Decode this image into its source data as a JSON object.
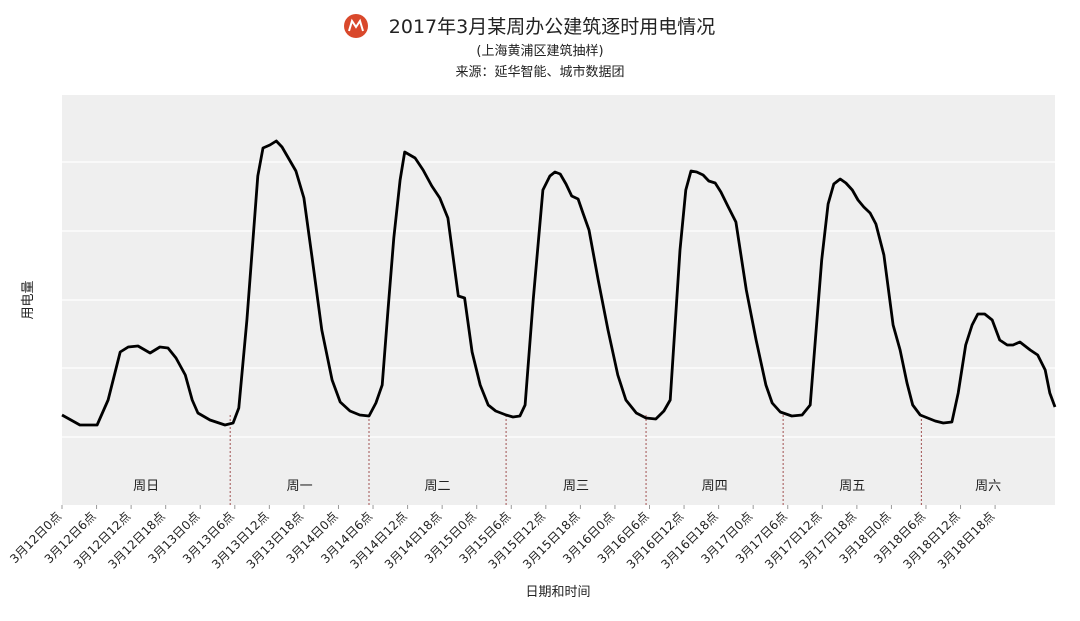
{
  "chart_data": {
    "type": "line",
    "title": "2017年3月某周办公建筑逐时用电情况",
    "subtitle": "(上海黄浦区建筑抽样)",
    "source": "来源：延华智能、城市数据团",
    "x_label": "日期和时间",
    "y_label": "用电量",
    "color": "#000000",
    "grid": true,
    "x": [
      0,
      3.1,
      6.1,
      8.0,
      10.1,
      11.5,
      13.2,
      15.3,
      17.0,
      18.4,
      19.8,
      21.4,
      22.6,
      23.6,
      25.7,
      28.3,
      29.7,
      30.7,
      32.1,
      34.0,
      34.9,
      36.1,
      37.2,
      38.2,
      39.2,
      40.6,
      42.0,
      43.4,
      45.1,
      46.9,
      48.3,
      50.0,
      51.7,
      53.3,
      54.5,
      55.6,
      56.6,
      57.6,
      58.7,
      59.5,
      61.3,
      62.7,
      64.2,
      65.6,
      67.0,
      68.8,
      69.9,
      71.2,
      72.6,
      74.0,
      75.3,
      77.1,
      78.3,
      79.5,
      80.4,
      81.8,
      83.5,
      84.7,
      85.6,
      86.5,
      87.5,
      88.5,
      89.6,
      90.5,
      91.5,
      93.1,
      94.8,
      96.5,
      97.9,
      99.7,
      101.4,
      103.1,
      104.5,
      105.6,
      107.3,
      108.3,
      109.2,
      110.2,
      111.3,
      112.3,
      113.4,
      114.4,
      115.6,
      117.0,
      118.8,
      120.5,
      122.2,
      123.3,
      124.7,
      126.7,
      128.5,
      129.9,
      131.9,
      133.0,
      134.0,
      135.1,
      136.1,
      137.2,
      138.2,
      139.2,
      140.3,
      141.3,
      142.7,
      144.3,
      145.5,
      146.7,
      147.7,
      149.0,
      151.6,
      153.0,
      154.5,
      155.6,
      156.9,
      158.0,
      159.0,
      160.2,
      161.5,
      162.8,
      164.1,
      165.1,
      166.3,
      168.1,
      169.4,
      170.7,
      171.5,
      172.4
    ],
    "values": [
      90,
      80,
      80,
      105,
      153,
      158,
      159,
      152,
      158,
      157,
      147,
      130,
      105,
      92,
      85,
      80,
      82,
      97,
      185,
      329,
      357,
      360,
      364,
      358,
      348,
      334,
      307,
      248,
      175,
      125,
      103,
      94,
      90,
      89,
      102,
      120,
      195,
      267,
      325,
      353,
      347,
      335,
      319,
      307,
      287,
      209,
      207,
      153,
      120,
      100,
      94,
      90,
      88,
      89,
      100,
      205,
      315,
      329,
      333,
      331,
      321,
      309,
      306,
      291,
      275,
      225,
      175,
      130,
      105,
      92,
      87,
      86,
      94,
      105,
      255,
      315,
      334,
      333,
      330,
      324,
      322,
      313,
      299,
      283,
      215,
      165,
      120,
      102,
      93,
      89,
      90,
      100,
      245,
      301,
      321,
      326,
      322,
      315,
      305,
      298,
      292,
      281,
      250,
      180,
      155,
      122,
      100,
      90,
      84,
      82,
      83,
      112,
      160,
      180,
      191,
      191,
      185,
      165,
      160,
      160,
      163,
      155,
      150,
      135,
      112,
      98
    ],
    "xlim": [
      0,
      172.4
    ],
    "ylim": [
      0,
      410
    ],
    "yticks": [
      68,
      137,
      205,
      274,
      343
    ],
    "xticks": [
      {
        "value": 0,
        "label": "3月12日0点"
      },
      {
        "value": 6,
        "label": "3月12日6点"
      },
      {
        "value": 12,
        "label": "3月12日12点"
      },
      {
        "value": 18,
        "label": "3月12日18点"
      },
      {
        "value": 24,
        "label": "3月13日0点"
      },
      {
        "value": 30,
        "label": "3月13日6点"
      },
      {
        "value": 36,
        "label": "3月13日12点"
      },
      {
        "value": 42,
        "label": "3月13日18点"
      },
      {
        "value": 48,
        "label": "3月14日0点"
      },
      {
        "value": 54,
        "label": "3月14日6点"
      },
      {
        "value": 60,
        "label": "3月14日12点"
      },
      {
        "value": 66,
        "label": "3月14日18点"
      },
      {
        "value": 72,
        "label": "3月15日0点"
      },
      {
        "value": 78,
        "label": "3月15日6点"
      },
      {
        "value": 84,
        "label": "3月15日12点"
      },
      {
        "value": 90,
        "label": "3月15日18点"
      },
      {
        "value": 96,
        "label": "3月16日0点"
      },
      {
        "value": 102,
        "label": "3月16日6点"
      },
      {
        "value": 108,
        "label": "3月16日12点"
      },
      {
        "value": 114,
        "label": "3月16日18点"
      },
      {
        "value": 120,
        "label": "3月17日0点"
      },
      {
        "value": 126,
        "label": "3月17日6点"
      },
      {
        "value": 132,
        "label": "3月17日12点"
      },
      {
        "value": 138,
        "label": "3月17日18点"
      },
      {
        "value": 144,
        "label": "3月18日0点"
      },
      {
        "value": 150,
        "label": "3月18日6点"
      },
      {
        "value": 156,
        "label": "3月18日12点"
      },
      {
        "value": 162,
        "label": "3月18日18点"
      }
    ],
    "day_dividers": [
      29.2,
      53.3,
      77.1,
      101.4,
      125.2,
      149.2
    ],
    "day_labels": [
      "周日",
      "周一",
      "周二",
      "周三",
      "周四",
      "周五",
      "周六"
    ]
  }
}
